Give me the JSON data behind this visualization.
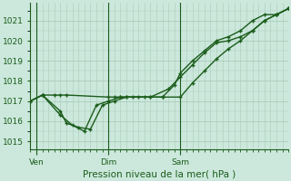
{
  "background_color": "#cce8dc",
  "grid_color": "#aaccbb",
  "line_color": "#1a5c1a",
  "title": "Pression niveau de la mer( hPa )",
  "xtick_labels": [
    "Ven",
    "Dim",
    "Sam"
  ],
  "xtick_positions": [
    12,
    36,
    60
  ],
  "xlim": [
    10,
    96
  ],
  "ylim": [
    1014.6,
    1021.9
  ],
  "yticks": [
    1015,
    1016,
    1017,
    1018,
    1019,
    1020,
    1021
  ],
  "series1_x": [
    10,
    14,
    18,
    20,
    22,
    36,
    38,
    40,
    42,
    46,
    50,
    54,
    60,
    64,
    68,
    72,
    76,
    80,
    84,
    88,
    92,
    96
  ],
  "series1_y": [
    1017.0,
    1017.3,
    1017.3,
    1017.3,
    1017.3,
    1017.2,
    1017.2,
    1017.2,
    1017.2,
    1017.2,
    1017.2,
    1017.2,
    1017.2,
    1017.9,
    1018.5,
    1019.1,
    1019.6,
    1020.0,
    1020.5,
    1021.0,
    1021.3,
    1021.6
  ],
  "series2_x": [
    10,
    14,
    20,
    22,
    26,
    30,
    34,
    38,
    42,
    48,
    54,
    58,
    60,
    64,
    68,
    72,
    76,
    80,
    84,
    88,
    92,
    96
  ],
  "series2_y": [
    1017.0,
    1017.3,
    1016.5,
    1015.9,
    1015.7,
    1015.6,
    1016.8,
    1017.0,
    1017.2,
    1017.2,
    1017.2,
    1017.8,
    1018.4,
    1019.0,
    1019.5,
    1020.0,
    1020.2,
    1020.5,
    1021.0,
    1021.3,
    1021.3,
    1021.6
  ],
  "series3_x": [
    10,
    14,
    20,
    24,
    28,
    32,
    36,
    40,
    44,
    50,
    56,
    60,
    64,
    68,
    72,
    76,
    80,
    84,
    88,
    92,
    96
  ],
  "series3_y": [
    1017.0,
    1017.3,
    1016.3,
    1015.8,
    1015.5,
    1016.8,
    1017.0,
    1017.2,
    1017.2,
    1017.2,
    1017.6,
    1018.2,
    1018.8,
    1019.4,
    1019.9,
    1020.0,
    1020.2,
    1020.5,
    1021.0,
    1021.3,
    1021.6
  ]
}
